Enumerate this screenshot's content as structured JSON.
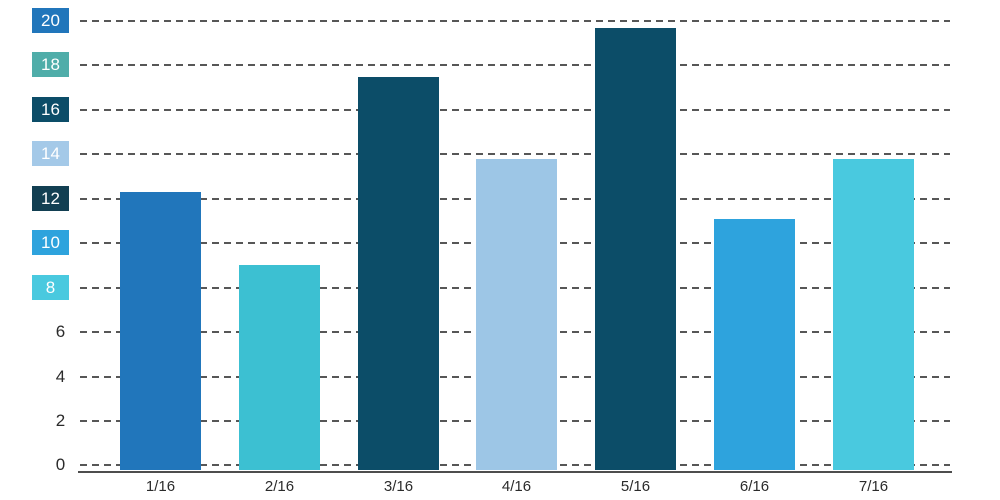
{
  "chart_data": {
    "type": "bar",
    "title": "",
    "xlabel": "",
    "ylabel": "",
    "categories": [
      "1/16",
      "2/16",
      "3/16",
      "4/16",
      "5/16",
      "6/16",
      "7/16"
    ],
    "values": [
      12.3,
      9.0,
      17.5,
      13.8,
      19.7,
      11.1,
      13.8
    ],
    "bar_colors": [
      "#2176bb",
      "#3cc0d2",
      "#0c4d68",
      "#9dc6e6",
      "#0c4d68",
      "#2ea3dd",
      "#49c9df"
    ],
    "ylim": [
      0,
      20
    ],
    "ytick_step": 2,
    "grid": "horizontal-dashed",
    "legend": "none",
    "yticks": [
      {
        "value": 20,
        "label": "20",
        "chip_color": "#2176bb",
        "text_color": "#ffffff"
      },
      {
        "value": 18,
        "label": "18",
        "chip_color": "#4fada9",
        "text_color": "#ffffff"
      },
      {
        "value": 16,
        "label": "16",
        "chip_color": "#0c4d68",
        "text_color": "#ffffff"
      },
      {
        "value": 14,
        "label": "14",
        "chip_color": "#a4c9e8",
        "text_color": "#ffffff"
      },
      {
        "value": 12,
        "label": "12",
        "chip_color": "#123f52",
        "text_color": "#ffffff"
      },
      {
        "value": 10,
        "label": "10",
        "chip_color": "#2ea3dd",
        "text_color": "#ffffff"
      },
      {
        "value": 8,
        "label": "8",
        "chip_color": "#49c9df",
        "text_color": "#ffffff"
      },
      {
        "value": 6,
        "label": "6",
        "chip_color": null,
        "text_color": "#2b2b2b"
      },
      {
        "value": 4,
        "label": "4",
        "chip_color": null,
        "text_color": "#2b2b2b"
      },
      {
        "value": 2,
        "label": "2",
        "chip_color": null,
        "text_color": "#2b2b2b"
      },
      {
        "value": 0,
        "label": "0",
        "chip_color": null,
        "text_color": "#2b2b2b"
      }
    ]
  }
}
